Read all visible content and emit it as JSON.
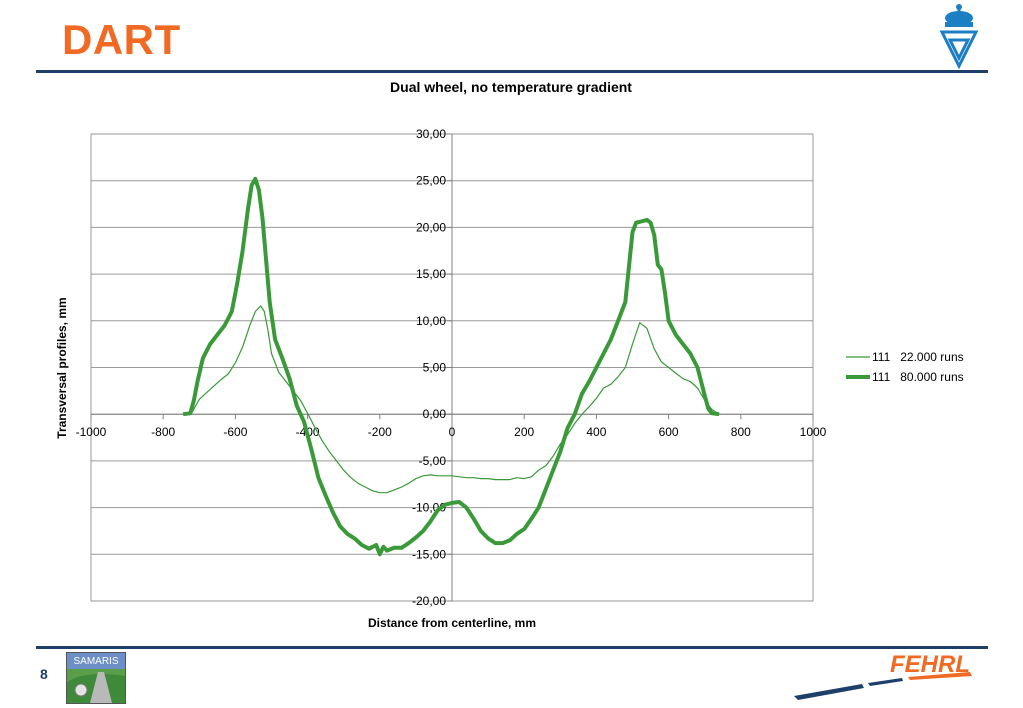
{
  "header": {
    "title": "DART"
  },
  "footer": {
    "page_number": "8",
    "samaris_label": "SAMARIS",
    "fehrl_label": "FEHRL"
  },
  "colors": {
    "title": "#f06a24",
    "rule": "#1f3f6b",
    "series": "#3a9a3a",
    "brand_blue": "#1c7fc4"
  },
  "chart_data": {
    "type": "line",
    "title": "Dual wheel, no temperature gradient",
    "xlabel": "Distance from centerline, mm",
    "ylabel": "Transversal profiles, mm",
    "xlim": [
      -1000,
      1000
    ],
    "ylim": [
      -20,
      30
    ],
    "x_ticks": [
      -1000,
      -800,
      -600,
      -400,
      -200,
      0,
      200,
      400,
      600,
      800,
      1000
    ],
    "x_tick_labels": [
      "-1000",
      "-800",
      "-600",
      "-400",
      "-200",
      "0",
      "200",
      "400",
      "600",
      "800",
      "1000"
    ],
    "y_ticks": [
      30,
      25,
      20,
      15,
      10,
      5,
      0,
      -5,
      -10,
      -15,
      -20
    ],
    "y_tick_labels": [
      "30,00",
      "25,00",
      "20,00",
      "15,00",
      "10,00",
      "5,00",
      "0,00",
      "-5,00",
      "-10,00",
      "-15,00",
      "-20,00"
    ],
    "grid": "horizontal",
    "legend_position": "right",
    "series": [
      {
        "name": "111   22.000 runs",
        "line_width": "thin",
        "x": [
          -745,
          -720,
          -700,
          -680,
          -660,
          -640,
          -620,
          -600,
          -580,
          -560,
          -545,
          -530,
          -520,
          -510,
          -500,
          -480,
          -460,
          -440,
          -420,
          -400,
          -380,
          -360,
          -340,
          -320,
          -300,
          -280,
          -260,
          -240,
          -220,
          -200,
          -180,
          -160,
          -140,
          -120,
          -100,
          -80,
          -60,
          -40,
          -20,
          0,
          20,
          40,
          60,
          80,
          100,
          120,
          140,
          160,
          180,
          200,
          220,
          240,
          260,
          280,
          300,
          320,
          340,
          360,
          380,
          400,
          420,
          440,
          460,
          480,
          500,
          520,
          540,
          560,
          580,
          600,
          620,
          640,
          660,
          680,
          700,
          720,
          740
        ],
        "y": [
          0,
          0.2,
          1.6,
          2.3,
          3.0,
          3.7,
          4.3,
          5.5,
          7.2,
          9.5,
          11.0,
          11.6,
          11.0,
          9.0,
          6.5,
          4.5,
          3.5,
          2.5,
          1.5,
          0.1,
          -1.4,
          -2.8,
          -4.0,
          -5.0,
          -6.0,
          -6.8,
          -7.4,
          -7.8,
          -8.2,
          -8.4,
          -8.4,
          -8.1,
          -7.8,
          -7.4,
          -6.9,
          -6.6,
          -6.5,
          -6.6,
          -6.6,
          -6.6,
          -6.7,
          -6.8,
          -6.8,
          -6.9,
          -6.9,
          -7.0,
          -7.0,
          -7.0,
          -6.8,
          -6.9,
          -6.7,
          -6.0,
          -5.5,
          -4.5,
          -3.2,
          -2.2,
          -1.0,
          0.0,
          0.8,
          1.7,
          2.8,
          3.2,
          4.0,
          5.0,
          7.5,
          9.8,
          9.2,
          7.0,
          5.6,
          5.0,
          4.4,
          3.8,
          3.5,
          2.8,
          1.5,
          0.5,
          0
        ]
      },
      {
        "name": "111   80.000 runs",
        "line_width": "thick",
        "x": [
          -745,
          -725,
          -715,
          -705,
          -690,
          -670,
          -650,
          -630,
          -610,
          -595,
          -580,
          -565,
          -555,
          -545,
          -535,
          -525,
          -515,
          -505,
          -490,
          -470,
          -450,
          -430,
          -410,
          -390,
          -370,
          -350,
          -330,
          -310,
          -290,
          -270,
          -250,
          -230,
          -210,
          -200,
          -190,
          -180,
          -160,
          -140,
          -120,
          -100,
          -80,
          -60,
          -40,
          -20,
          0,
          20,
          40,
          60,
          80,
          100,
          120,
          140,
          160,
          180,
          200,
          220,
          240,
          260,
          280,
          300,
          320,
          340,
          360,
          380,
          400,
          420,
          440,
          460,
          480,
          500,
          510,
          520,
          530,
          540,
          550,
          560,
          570,
          580,
          590,
          600,
          620,
          640,
          660,
          680,
          700,
          710,
          720,
          740
        ],
        "y": [
          0,
          0.1,
          1.5,
          3.5,
          6.0,
          7.5,
          8.5,
          9.5,
          11.0,
          14.0,
          17.5,
          22.0,
          24.5,
          25.2,
          24.0,
          21.0,
          16.5,
          12.0,
          8.0,
          6.0,
          3.8,
          0.9,
          -0.8,
          -3.7,
          -6.8,
          -8.7,
          -10.5,
          -12.0,
          -12.8,
          -13.3,
          -14.0,
          -14.4,
          -14.0,
          -15.0,
          -14.2,
          -14.6,
          -14.3,
          -14.3,
          -13.8,
          -13.2,
          -12.5,
          -11.5,
          -10.3,
          -9.7,
          -9.5,
          -9.4,
          -10.0,
          -11.2,
          -12.5,
          -13.3,
          -13.8,
          -13.8,
          -13.5,
          -12.8,
          -12.3,
          -11.2,
          -10.0,
          -8.0,
          -6.0,
          -4.0,
          -1.5,
          0.0,
          2.2,
          3.5,
          5.0,
          6.5,
          8.0,
          10.0,
          12.0,
          19.5,
          20.5,
          20.6,
          20.7,
          20.8,
          20.5,
          19.2,
          16.0,
          15.5,
          13.0,
          10.0,
          8.5,
          7.5,
          6.5,
          5.0,
          2.0,
          0.6,
          0.1,
          0
        ]
      }
    ]
  }
}
